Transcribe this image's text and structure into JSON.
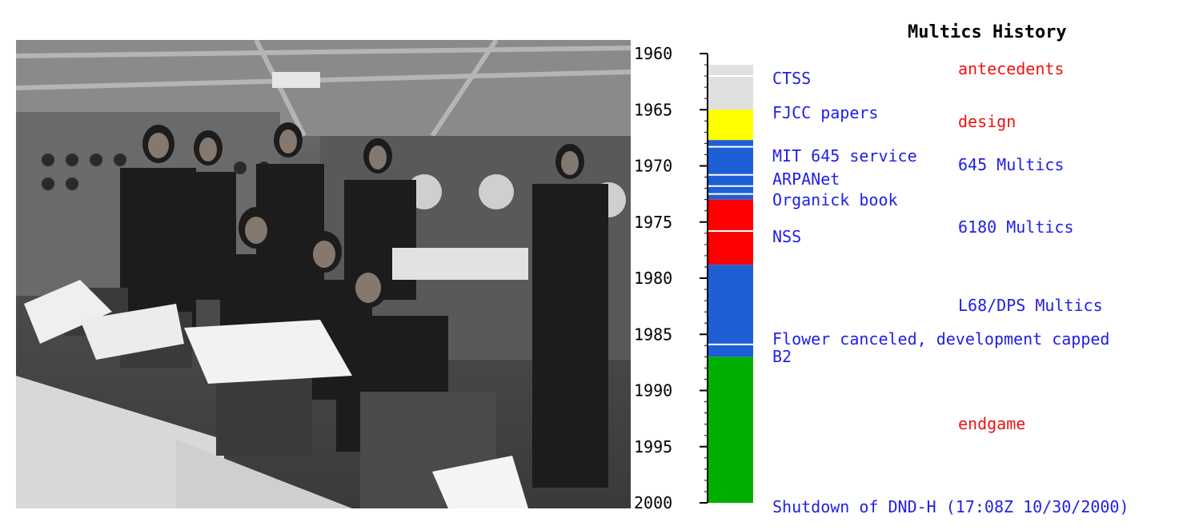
{
  "title": "Multics History",
  "timeline": {
    "start_year": 1960,
    "end_year": 2000,
    "tick_labels": [
      "1960",
      "1965",
      "1970",
      "1975",
      "1980",
      "1985",
      "1990",
      "1995",
      "2000"
    ],
    "colors": {
      "antecedents": "#e0e0e0",
      "design": "#ffff00",
      "645_multics": "#1f5fd6",
      "6180_multics": "#ff0000",
      "l68_dps_multics": "#1f5fd6",
      "endgame": "#00b000"
    },
    "segments": [
      {
        "phase": "antecedents",
        "from": 1961,
        "to": 1965,
        "color": "#e0e0e0"
      },
      {
        "phase": "design",
        "from": 1965,
        "to": 1967.7,
        "color": "#ffff00"
      },
      {
        "phase": "645 Multics",
        "from": 1967.7,
        "to": 1973,
        "color": "#1f5fd6"
      },
      {
        "phase": "6180 Multics",
        "from": 1973,
        "to": 1978.8,
        "color": "#ff0000"
      },
      {
        "phase": "L68/DPS Multics",
        "from": 1978.8,
        "to": 1987,
        "color": "#1f5fd6"
      },
      {
        "phase": "endgame",
        "from": 1987,
        "to": 2000,
        "color": "#00b000"
      }
    ],
    "divider_years": [
      1962,
      1968.3,
      1970.8,
      1971.8,
      1972.5,
      1975.8,
      1985.9
    ]
  },
  "events": [
    {
      "label": "CTSS"
    },
    {
      "label": "FJCC papers"
    },
    {
      "label": "MIT 645 service"
    },
    {
      "label": "ARPANet"
    },
    {
      "label": "Organick book"
    },
    {
      "label": "NSS"
    },
    {
      "label": "Flower canceled, development capped"
    },
    {
      "label": "B2"
    },
    {
      "label": "Shutdown of DND-H (17:08Z 10/30/2000)"
    }
  ],
  "phases": [
    {
      "label": "antecedents",
      "color": "#ee1111"
    },
    {
      "label": "design",
      "color": "#ee1111"
    },
    {
      "label": "645 Multics",
      "color": "#1f1fe6"
    },
    {
      "label": "6180 Multics",
      "color": "#1f1fe6"
    },
    {
      "label": "L68/DPS Multics",
      "color": "#1f1fe6"
    },
    {
      "label": "endgame",
      "color": "#ee1111"
    }
  ]
}
